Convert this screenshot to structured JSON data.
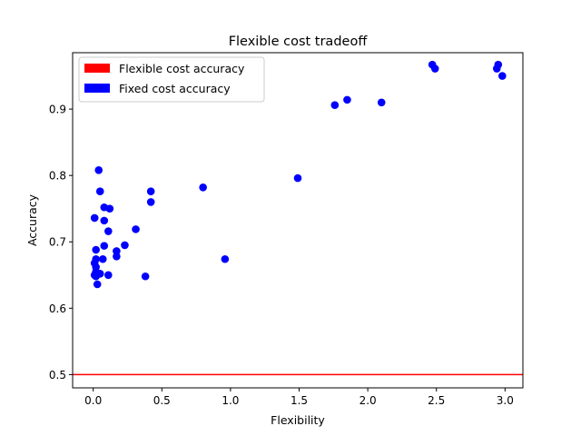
{
  "chart_data": {
    "type": "scatter",
    "title": "Flexible cost tradeoff",
    "xlabel": "Flexibility",
    "ylabel": "Accuracy",
    "xlim": [
      -0.15,
      3.13
    ],
    "ylim": [
      0.48,
      0.985
    ],
    "xticks": [
      0.0,
      0.5,
      1.0,
      1.5,
      2.0,
      2.5,
      3.0
    ],
    "xtick_labels": [
      "0.0",
      "0.5",
      "1.0",
      "1.5",
      "2.0",
      "2.5",
      "3.0"
    ],
    "yticks": [
      0.5,
      0.6,
      0.7,
      0.8,
      0.9
    ],
    "ytick_labels": [
      "0.5",
      "0.6",
      "0.7",
      "0.8",
      "0.9"
    ],
    "grid": false,
    "legend_position": "top-left",
    "legend": [
      {
        "label": "Flexible cost accuracy",
        "color": "#ff0000"
      },
      {
        "label": "Fixed cost accuracy",
        "color": "#0000ff"
      }
    ],
    "hline": {
      "y": 0.5,
      "color": "#ff0000"
    },
    "series": [
      {
        "color": "#0000ff",
        "points": [
          {
            "x": 0.01,
            "y": 0.736
          },
          {
            "x": 0.04,
            "y": 0.808
          },
          {
            "x": 0.05,
            "y": 0.776
          },
          {
            "x": 0.08,
            "y": 0.752
          },
          {
            "x": 0.08,
            "y": 0.732
          },
          {
            "x": 0.12,
            "y": 0.75
          },
          {
            "x": 0.11,
            "y": 0.716
          },
          {
            "x": 0.02,
            "y": 0.688
          },
          {
            "x": 0.08,
            "y": 0.694
          },
          {
            "x": 0.02,
            "y": 0.674
          },
          {
            "x": 0.01,
            "y": 0.668
          },
          {
            "x": 0.02,
            "y": 0.662
          },
          {
            "x": 0.07,
            "y": 0.674
          },
          {
            "x": 0.02,
            "y": 0.655
          },
          {
            "x": 0.01,
            "y": 0.65
          },
          {
            "x": 0.02,
            "y": 0.648
          },
          {
            "x": 0.05,
            "y": 0.652
          },
          {
            "x": 0.03,
            "y": 0.636
          },
          {
            "x": 0.11,
            "y": 0.65
          },
          {
            "x": 0.17,
            "y": 0.686
          },
          {
            "x": 0.17,
            "y": 0.678
          },
          {
            "x": 0.23,
            "y": 0.695
          },
          {
            "x": 0.31,
            "y": 0.719
          },
          {
            "x": 0.38,
            "y": 0.648
          },
          {
            "x": 0.42,
            "y": 0.776
          },
          {
            "x": 0.42,
            "y": 0.76
          },
          {
            "x": 0.8,
            "y": 0.782
          },
          {
            "x": 0.96,
            "y": 0.674
          },
          {
            "x": 1.49,
            "y": 0.796
          },
          {
            "x": 1.76,
            "y": 0.906
          },
          {
            "x": 1.85,
            "y": 0.914
          },
          {
            "x": 2.1,
            "y": 0.91
          },
          {
            "x": 2.47,
            "y": 0.967
          },
          {
            "x": 2.49,
            "y": 0.961
          },
          {
            "x": 2.94,
            "y": 0.961
          },
          {
            "x": 2.95,
            "y": 0.967
          },
          {
            "x": 2.98,
            "y": 0.95
          }
        ]
      }
    ]
  }
}
